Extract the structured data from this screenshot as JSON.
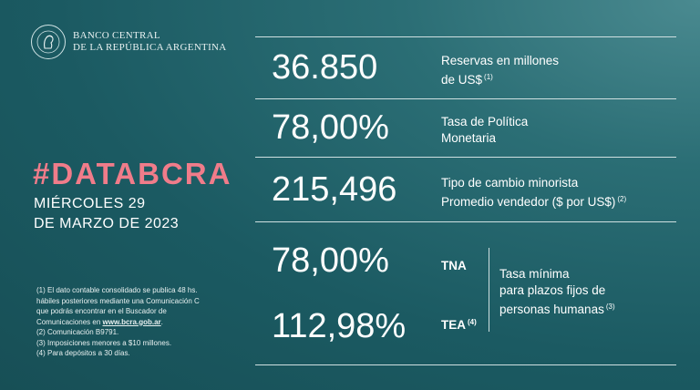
{
  "brand": {
    "line1": "BANCO CENTRAL",
    "line2": "DE LA REPÚBLICA ARGENTINA"
  },
  "hashtag": "#DATABCRA",
  "date": {
    "line1": "MIÉRCOLES 29",
    "line2": "DE MARZO DE 2023"
  },
  "reservas": {
    "value": "36.850",
    "label1": "Reservas en millones",
    "label2": "de US$",
    "ref": "(1)"
  },
  "tasa_politica": {
    "value": "78,00%",
    "label1": "Tasa de Política",
    "label2": "Monetaria"
  },
  "tipo_cambio": {
    "value": "215,496",
    "label1": "Tipo de cambio minorista",
    "label2": "Promedio vendedor ($ por US$)",
    "ref": "(2)"
  },
  "plazo_fijo": {
    "tna_value": "78,00%",
    "tna_label": "TNA",
    "tea_value": "112,98%",
    "tea_label": "TEA",
    "tea_ref": "(4)",
    "desc1": "Tasa mínima",
    "desc2": "para plazos fijos de",
    "desc3": "personas humanas",
    "desc_ref": "(3)"
  },
  "notes": {
    "n1a": "(1) El dato contable consolidado se publica 48 hs.",
    "n1b": "hábiles posteriores mediante una Comunicación C",
    "n1c": "que podrás encontrar en el Buscador de",
    "n1d": "Comunicaciones en",
    "n1d_link": "www.bcra.gob.ar",
    "n1d_end": ".",
    "n2": "(2) Comunicación B9791.",
    "n3": "(3) Imposiciones menores a $10 millones.",
    "n4": "(4) Para depósitos a 30 días."
  },
  "colors": {
    "accent": "#f07c8a",
    "background": "#1b5a62"
  }
}
